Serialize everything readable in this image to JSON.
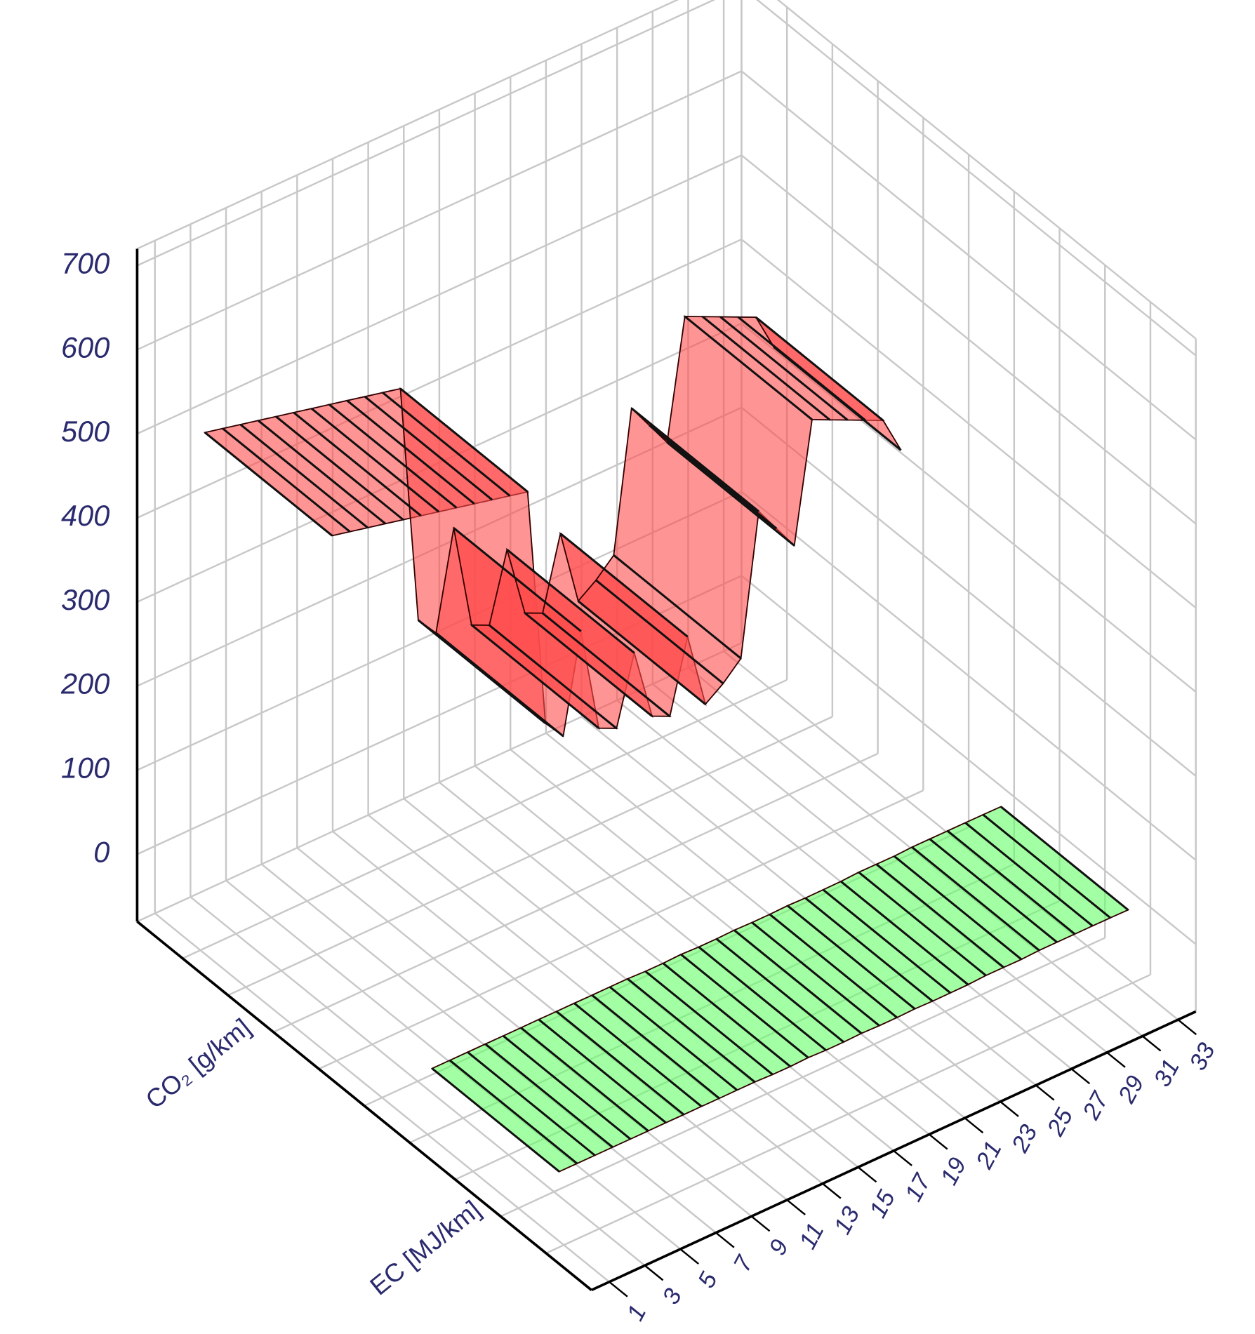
{
  "chart_data": {
    "type": "ribbon3d",
    "x": [
      1,
      2,
      3,
      4,
      5,
      6,
      7,
      8,
      9,
      10,
      11,
      12,
      13,
      14,
      15,
      16,
      17,
      18,
      19,
      20,
      21,
      22,
      23,
      24,
      25,
      26,
      27,
      28,
      29,
      30,
      31,
      32,
      33
    ],
    "xlim": [
      0,
      34
    ],
    "xticks": [
      1,
      3,
      5,
      7,
      9,
      11,
      13,
      15,
      17,
      19,
      21,
      23,
      25,
      27,
      29,
      31,
      33
    ],
    "zlim": [
      -80,
      720
    ],
    "zticks": [
      0,
      100,
      200,
      300,
      400,
      500,
      600,
      700
    ],
    "grid": true,
    "series": [
      {
        "name": "CO₂ [g/km]",
        "color": "#ff4d4d",
        "values": [
          540,
          535,
          530,
          525,
          520,
          515,
          510,
          505,
          500,
          495,
          490,
          485,
          200,
          175,
          290,
          165,
          155,
          235,
          150,
          140,
          225,
          135,
          150,
          170,
          335,
          305,
          275,
          415,
          405,
          395,
          385,
          375,
          330
        ]
      },
      {
        "name": "EC [MJ/km]",
        "color": "#66ff66",
        "values": [
          2.9,
          2.8,
          2.8,
          2.7,
          2.7,
          2.6,
          2.6,
          2.5,
          2.5,
          2.4,
          2.4,
          2.3,
          1.5,
          1.3,
          2.1,
          1.2,
          1.1,
          1.7,
          1.1,
          1.0,
          1.6,
          1.0,
          1.1,
          1.2,
          2.4,
          2.2,
          2.0,
          3.0,
          2.9,
          2.9,
          2.8,
          2.7,
          2.4
        ]
      }
    ]
  }
}
